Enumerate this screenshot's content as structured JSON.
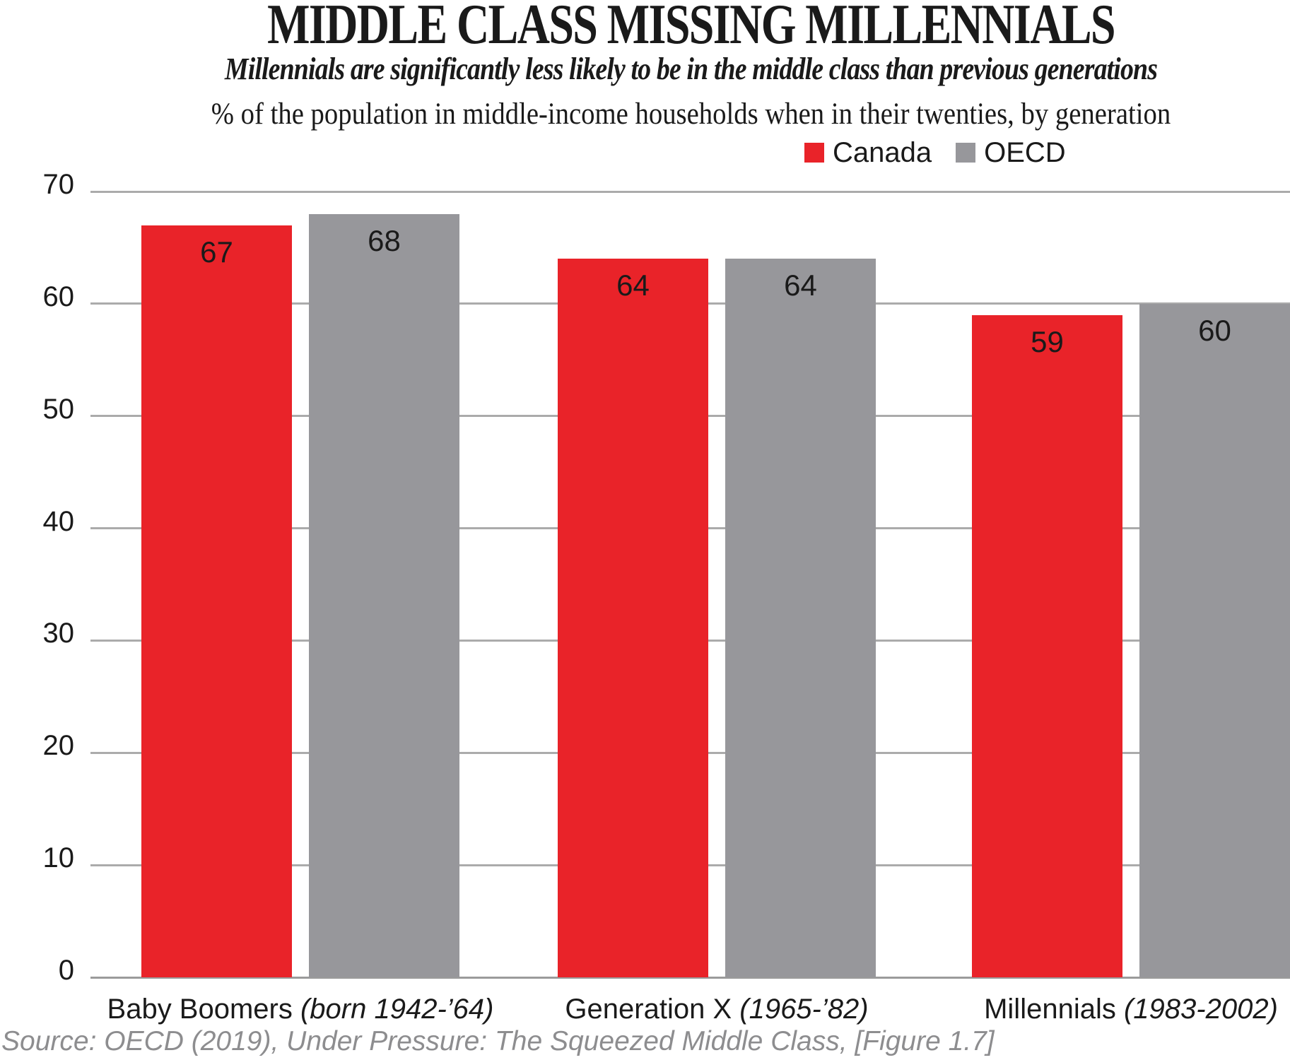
{
  "chart_data": {
    "type": "bar",
    "title": "MIDDLE CLASS MISSING MILLENNIALS",
    "subtitle": "Millennials are significantly less likely to be in the middle class than previous generations",
    "units_note": "% of the population in middle-income households when in their twenties, by generation",
    "categories": [
      {
        "name": "Baby Boomers",
        "detail": "(born 1942-’64)"
      },
      {
        "name": "Generation X",
        "detail": "(1965-’82)"
      },
      {
        "name": "Millennials",
        "detail": "(1983-2002)"
      }
    ],
    "series": [
      {
        "name": "Canada",
        "color": "#e92329",
        "values": [
          67,
          64,
          59
        ]
      },
      {
        "name": "OECD",
        "color": "#97979b",
        "values": [
          68,
          64,
          60
        ]
      }
    ],
    "y_axis": {
      "min": 0,
      "max": 70,
      "tick_step": 10,
      "ticks": [
        0,
        10,
        20,
        30,
        40,
        50,
        60,
        70
      ]
    },
    "grid": true,
    "legend_position": "top-right",
    "value_label_position": "inside-top",
    "source": "Source: OECD (2019), Under Pressure: The Squeezed Middle Class, [Figure 1.7]",
    "colors": {
      "gridline": "#ababab",
      "baseline": "#9b9b9b",
      "text": "#1a1a1a",
      "source_text": "#8d8d8f",
      "background": "#ffffff"
    }
  }
}
